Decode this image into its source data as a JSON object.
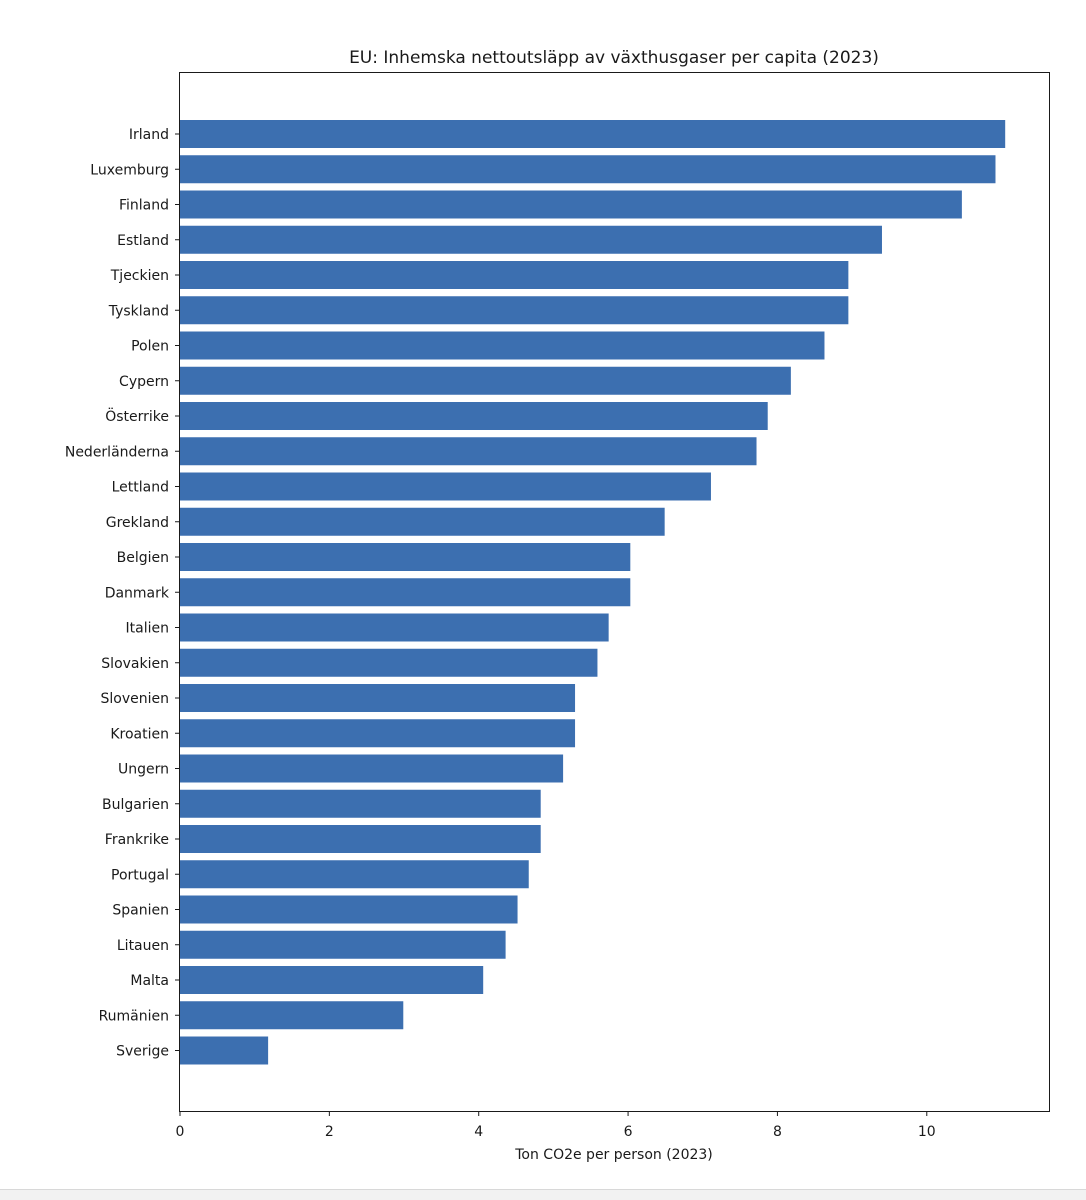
{
  "chart_data": {
    "type": "bar",
    "orientation": "horizontal",
    "title": "EU: Inhemska nettoutsläpp av växthusgaser per capita (2023)",
    "xlabel": "Ton CO2e per person (2023)",
    "ylabel": "",
    "xlim": [
      0,
      11.65
    ],
    "xticks": [
      0,
      2,
      4,
      6,
      8,
      10
    ],
    "grid": false,
    "bar_color": "#3c6fb0",
    "categories": [
      "Irland",
      "Luxemburg",
      "Finland",
      "Estland",
      "Tjeckien",
      "Tyskland",
      "Polen",
      "Cypern",
      "Österrike",
      "Nederländerna",
      "Lettland",
      "Grekland",
      "Belgien",
      "Danmark",
      "Italien",
      "Slovakien",
      "Slovenien",
      "Kroatien",
      "Ungern",
      "Bulgarien",
      "Frankrike",
      "Portugal",
      "Spanien",
      "Litauen",
      "Malta",
      "Rumänien",
      "Sverige"
    ],
    "values": [
      11.05,
      10.92,
      10.47,
      9.4,
      8.95,
      8.95,
      8.63,
      8.18,
      7.87,
      7.72,
      7.11,
      6.49,
      6.03,
      6.03,
      5.74,
      5.59,
      5.29,
      5.29,
      5.13,
      4.83,
      4.83,
      4.67,
      4.52,
      4.36,
      4.06,
      2.99,
      1.18
    ]
  }
}
